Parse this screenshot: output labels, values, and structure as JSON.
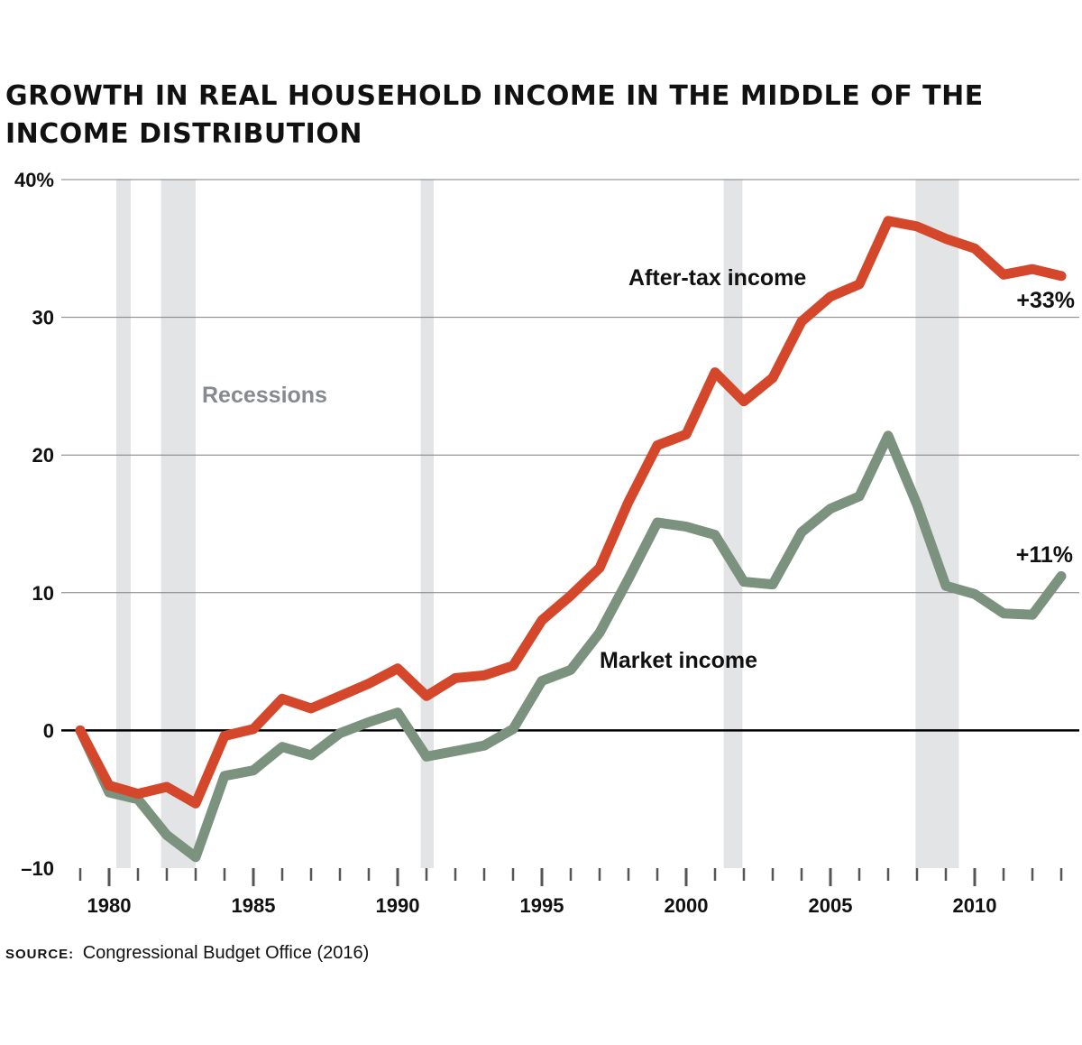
{
  "chart_data": {
    "type": "line",
    "title": "GROWTH IN REAL HOUSEHOLD INCOME IN THE MIDDLE OF THE INCOME DISTRIBUTION",
    "xlabel": "",
    "ylabel": "",
    "xlim": [
      1979,
      2013
    ],
    "ylim": [
      -10,
      40
    ],
    "y_ticks": [
      {
        "value": 40,
        "label": "40%"
      },
      {
        "value": 30,
        "label": "30"
      },
      {
        "value": 20,
        "label": "20"
      },
      {
        "value": 10,
        "label": "10"
      },
      {
        "value": 0,
        "label": "0"
      },
      {
        "value": -10,
        "label": "–10"
      }
    ],
    "x_tick_labels": [
      {
        "value": 1980,
        "label": "1980"
      },
      {
        "value": 1985,
        "label": "1985"
      },
      {
        "value": 1990,
        "label": "1990"
      },
      {
        "value": 1995,
        "label": "1995"
      },
      {
        "value": 2000,
        "label": "2000"
      },
      {
        "value": 2005,
        "label": "2005"
      },
      {
        "value": 2010,
        "label": "2010"
      }
    ],
    "x": [
      1979,
      1980,
      1981,
      1982,
      1983,
      1984,
      1985,
      1986,
      1987,
      1988,
      1989,
      1990,
      1991,
      1992,
      1993,
      1994,
      1995,
      1996,
      1997,
      1998,
      1999,
      2000,
      2001,
      2002,
      2003,
      2004,
      2005,
      2006,
      2007,
      2008,
      2009,
      2010,
      2011,
      2012,
      2013
    ],
    "series": [
      {
        "name": "After-tax income",
        "color": "#d5472b",
        "values": [
          0,
          -4,
          -4.6,
          -4.1,
          -5.3,
          -0.4,
          0.1,
          2.3,
          1.6,
          2.5,
          3.4,
          4.5,
          2.5,
          3.8,
          4.0,
          4.7,
          8.0,
          9.8,
          11.8,
          16.6,
          20.7,
          21.5,
          26.0,
          23.9,
          25.6,
          29.7,
          31.5,
          32.4,
          37.0,
          36.6,
          35.7,
          35.0,
          33.1,
          33.5,
          33.0
        ]
      },
      {
        "name": "Market income",
        "color": "#7a927e",
        "values": [
          0,
          -4.5,
          -5.0,
          -7.6,
          -9.2,
          -3.3,
          -2.9,
          -1.2,
          -1.8,
          -0.2,
          0.6,
          1.3,
          -1.9,
          -1.5,
          -1.1,
          0.1,
          3.6,
          4.4,
          7.1,
          11.0,
          15.1,
          14.8,
          14.2,
          10.8,
          10.6,
          14.4,
          16.1,
          17.0,
          21.4,
          16.4,
          10.5,
          9.9,
          8.5,
          8.4,
          11.2
        ]
      }
    ],
    "recessions": [
      [
        1980.25,
        1980.75
      ],
      [
        1981.8,
        1983.0
      ],
      [
        1990.8,
        1991.25
      ],
      [
        2001.3,
        2001.95
      ],
      [
        2007.95,
        2009.45
      ]
    ],
    "annotations": {
      "recessions_label": "Recessions",
      "after_tax_label": "After-tax income",
      "market_label": "Market income",
      "after_tax_end": "+33%",
      "market_end": "+11%"
    }
  },
  "source": {
    "label": "SOURCE:",
    "text": "Congressional Budget Office (2016)"
  },
  "colors": {
    "recession_band": "#e3e4e6",
    "grid": "#7f7f7f",
    "zero_line": "#000000"
  }
}
